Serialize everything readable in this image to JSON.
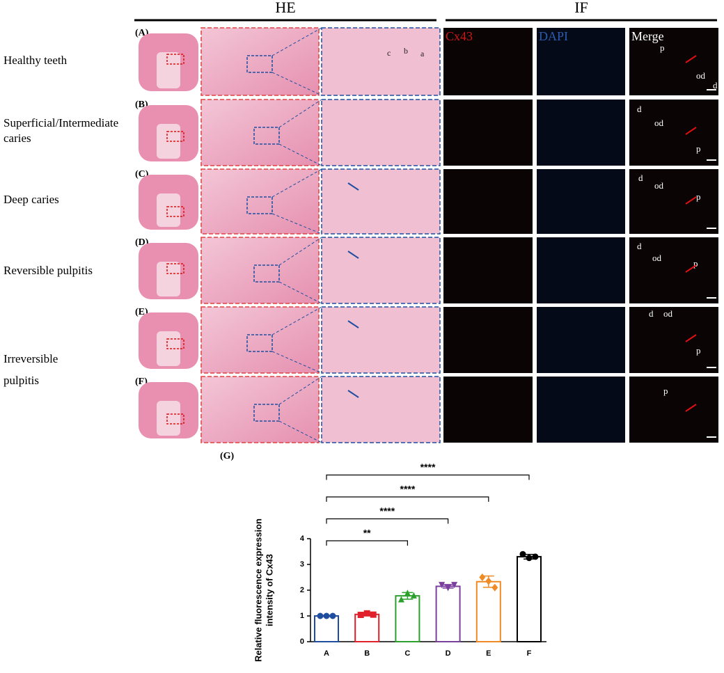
{
  "headers": {
    "he": "HE",
    "if": "IF"
  },
  "if_columns": [
    "Cx43",
    "DAPI",
    "Merge"
  ],
  "rows": [
    {
      "panel": "(A)",
      "label": [
        "Healthy teeth"
      ],
      "he_annotations": [
        "c",
        "b",
        "a"
      ],
      "merge_annotations": [
        "p",
        "od",
        "d"
      ]
    },
    {
      "panel": "(B)",
      "label": [
        "Superficial/Intermediate",
        "caries"
      ],
      "he_annotations": [],
      "merge_annotations": [
        "d",
        "od",
        "p"
      ]
    },
    {
      "panel": "(C)",
      "label": [
        "Deep caries"
      ],
      "he_annotations": [],
      "merge_annotations": [
        "d",
        "od",
        "p"
      ]
    },
    {
      "panel": "(D)",
      "label": [
        "Reversible pulpitis"
      ],
      "he_annotations": [],
      "merge_annotations": [
        "d",
        "od",
        "p"
      ]
    },
    {
      "panel": "(E)",
      "label": [
        "Irreversible",
        "pulpitis"
      ],
      "he_annotations": [],
      "merge_annotations": [
        "d",
        "od",
        "p"
      ]
    },
    {
      "panel": "(F)",
      "label": [],
      "he_annotations": [],
      "merge_annotations": [
        "p"
      ]
    }
  ],
  "chart_data": {
    "type": "bar",
    "panel": "(G)",
    "ylabel": [
      "Relative fluorescence expression",
      "intensity of Cx43"
    ],
    "categories": [
      "A",
      "B",
      "C",
      "D",
      "E",
      "F"
    ],
    "values": [
      1.0,
      1.06,
      1.78,
      2.15,
      2.33,
      3.3
    ],
    "errors": [
      0.02,
      0.05,
      0.13,
      0.07,
      0.22,
      0.09
    ],
    "points": [
      [
        1.0,
        1.0,
        1.0
      ],
      [
        1.04,
        1.1,
        1.05
      ],
      [
        1.65,
        1.9,
        1.8
      ],
      [
        2.2,
        2.08,
        2.2
      ],
      [
        2.5,
        2.35,
        2.1
      ],
      [
        3.4,
        3.25,
        3.3
      ]
    ],
    "colors": [
      "#1f4ea0",
      "#e0202a",
      "#2ca02c",
      "#7b3f9e",
      "#f08a24",
      "#000000"
    ],
    "markers": [
      "circle",
      "square",
      "triangle",
      "triangle-down",
      "diamond",
      "circle"
    ],
    "ylim": [
      0,
      4
    ],
    "yticks": [
      0,
      1,
      2,
      3,
      4
    ],
    "significance": [
      "**",
      "****",
      "****",
      "****"
    ]
  }
}
